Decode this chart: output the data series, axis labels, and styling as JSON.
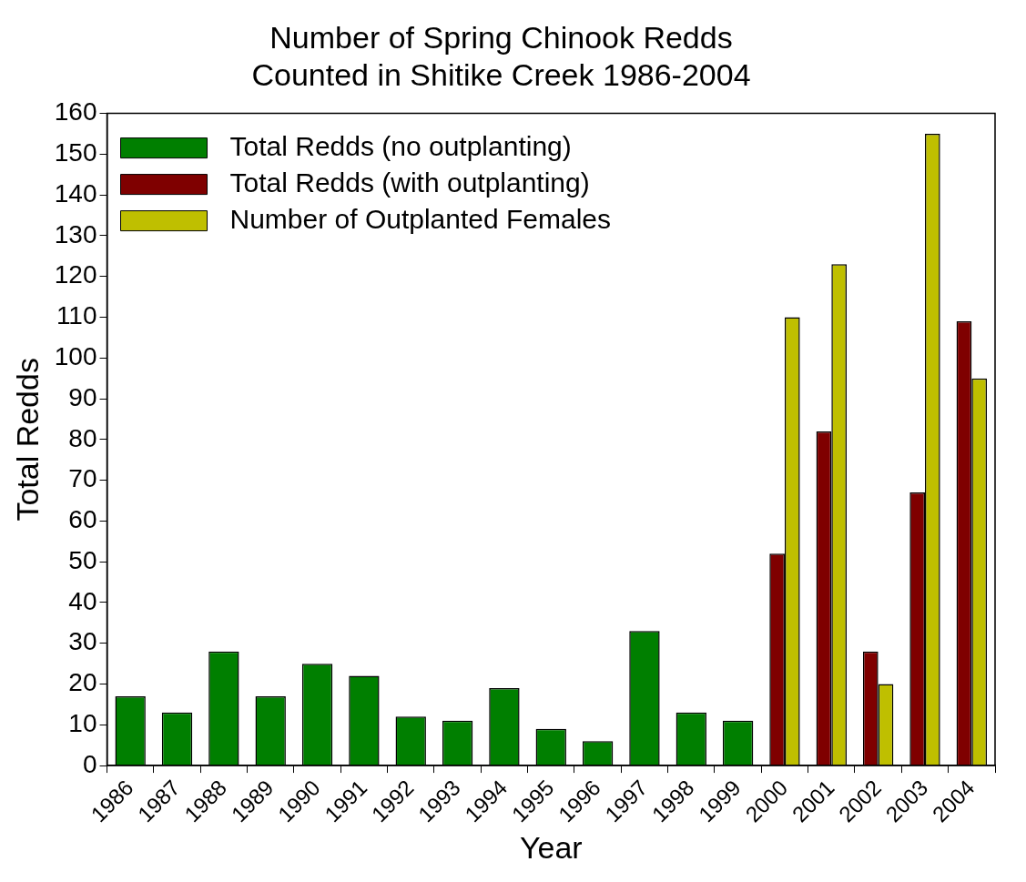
{
  "chart_data": {
    "type": "bar",
    "title": "Number of Spring Chinook Redds\nCounted in Shitike Creek 1986-2004",
    "xlabel": "Year",
    "ylabel": "Total Redds",
    "categories": [
      "1986",
      "1987",
      "1988",
      "1989",
      "1990",
      "1991",
      "1992",
      "1993",
      "1994",
      "1995",
      "1996",
      "1997",
      "1998",
      "1999",
      "2000",
      "2001",
      "2002",
      "2003",
      "2004"
    ],
    "series": [
      {
        "name": "Total Redds (no outplanting)",
        "color": "#007f00",
        "values": [
          17,
          13,
          28,
          17,
          25,
          22,
          12,
          11,
          19,
          9,
          6,
          33,
          13,
          11,
          null,
          null,
          null,
          null,
          null
        ]
      },
      {
        "name": "Total Redds (with outplanting)",
        "color": "#7f0000",
        "values": [
          null,
          null,
          null,
          null,
          null,
          null,
          null,
          null,
          null,
          null,
          null,
          null,
          null,
          null,
          52,
          82,
          28,
          67,
          109
        ]
      },
      {
        "name": "Number of Outplanted Females",
        "color": "#bfbf00",
        "values": [
          null,
          null,
          null,
          null,
          null,
          null,
          null,
          null,
          null,
          null,
          null,
          null,
          null,
          null,
          110,
          123,
          20,
          155,
          95
        ]
      }
    ],
    "ylim": [
      0,
      160
    ],
    "yticks": [
      0,
      10,
      20,
      30,
      40,
      50,
      60,
      70,
      80,
      90,
      100,
      110,
      120,
      130,
      140,
      150,
      160
    ],
    "grid": false,
    "legend": "top left"
  }
}
